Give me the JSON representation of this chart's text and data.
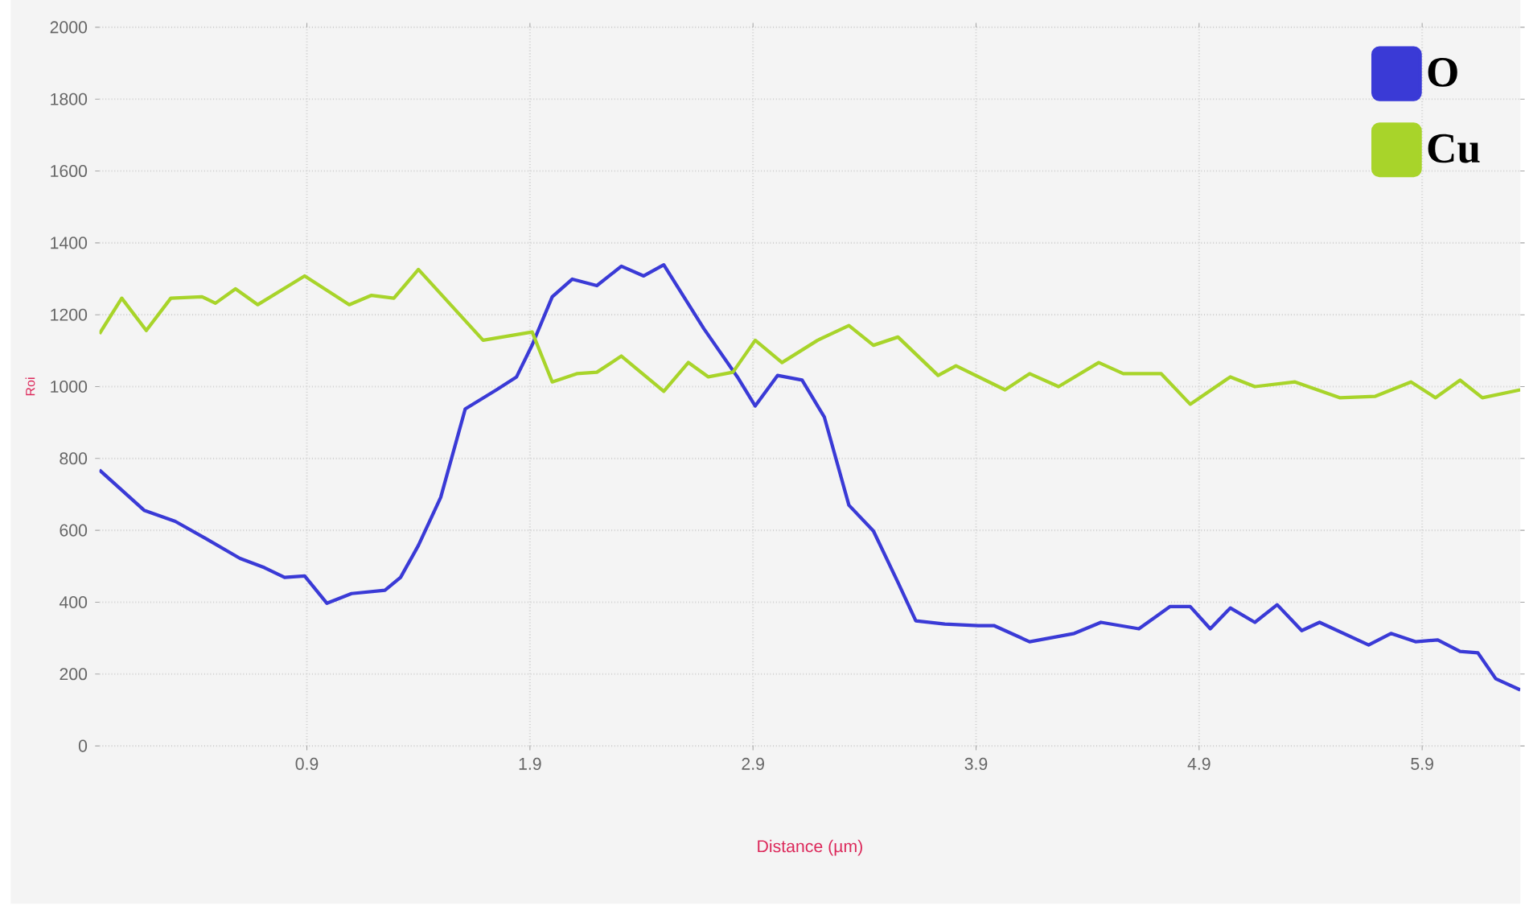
{
  "chart_data": {
    "type": "line",
    "xlabel": "Distance (µm)",
    "ylabel": "Roi",
    "xlim": [
      -0.03,
      6.34
    ],
    "xticks": [
      0.9,
      1.9,
      2.9,
      3.9,
      4.9,
      5.9
    ],
    "ylim": [
      0,
      2000
    ],
    "yticks": [
      0,
      200,
      400,
      600,
      800,
      1000,
      1200,
      1400,
      1600,
      1800,
      2000
    ],
    "grid": true,
    "legend": "top right",
    "marker": "none",
    "line_style": "solid",
    "series": [
      {
        "name": "O",
        "color": "#3a3ad6",
        "x": [
          -0.03,
          0.17,
          0.31,
          0.45,
          0.6,
          0.71,
          0.8,
          0.89,
          0.99,
          1.1,
          1.25,
          1.32,
          1.4,
          1.5,
          1.61,
          1.75,
          1.84,
          1.91,
          2.0,
          2.09,
          2.2,
          2.31,
          2.41,
          2.5,
          2.68,
          2.83,
          2.91,
          3.01,
          3.12,
          3.22,
          3.33,
          3.44,
          3.55,
          3.63,
          3.76,
          3.91,
          3.98,
          4.14,
          4.34,
          4.46,
          4.63,
          4.77,
          4.86,
          4.95,
          5.04,
          5.15,
          5.25,
          5.36,
          5.44,
          5.66,
          5.76,
          5.87,
          5.97,
          6.07,
          6.15,
          6.23,
          6.34
        ],
        "values": [
          768,
          656,
          625,
          576,
          522,
          496,
          469,
          473,
          397,
          424,
          433,
          469,
          558,
          692,
          938,
          991,
          1027,
          1116,
          1250,
          1299,
          1281,
          1335,
          1308,
          1339,
          1161,
          1027,
          946,
          1031,
          1018,
          915,
          670,
          598,
          455,
          348,
          339,
          335,
          335,
          290,
          313,
          344,
          326,
          388,
          388,
          326,
          384,
          344,
          393,
          321,
          344,
          281,
          313,
          290,
          295,
          263,
          259,
          187,
          156
        ]
      },
      {
        "name": "Cu",
        "color": "#a8d42a",
        "x": [
          -0.03,
          0.07,
          0.18,
          0.29,
          0.43,
          0.49,
          0.58,
          0.68,
          0.89,
          1.09,
          1.19,
          1.29,
          1.4,
          1.69,
          1.91,
          2.0,
          2.11,
          2.2,
          2.31,
          2.5,
          2.61,
          2.7,
          2.81,
          2.91,
          3.03,
          3.19,
          3.33,
          3.44,
          3.55,
          3.73,
          3.81,
          4.03,
          4.14,
          4.27,
          4.45,
          4.56,
          4.73,
          4.86,
          5.04,
          5.15,
          5.33,
          5.53,
          5.69,
          5.85,
          5.96,
          6.07,
          6.17,
          6.34
        ],
        "values": [
          1147,
          1246,
          1156,
          1246,
          1250,
          1232,
          1272,
          1228,
          1308,
          1228,
          1254,
          1246,
          1326,
          1129,
          1152,
          1013,
          1036,
          1040,
          1085,
          987,
          1067,
          1027,
          1040,
          1129,
          1067,
          1129,
          1170,
          1115,
          1138,
          1031,
          1058,
          991,
          1036,
          1000,
          1067,
          1036,
          1036,
          951,
          1027,
          1000,
          1013,
          969,
          973,
          1013,
          969,
          1018,
          969,
          991
        ]
      }
    ]
  }
}
